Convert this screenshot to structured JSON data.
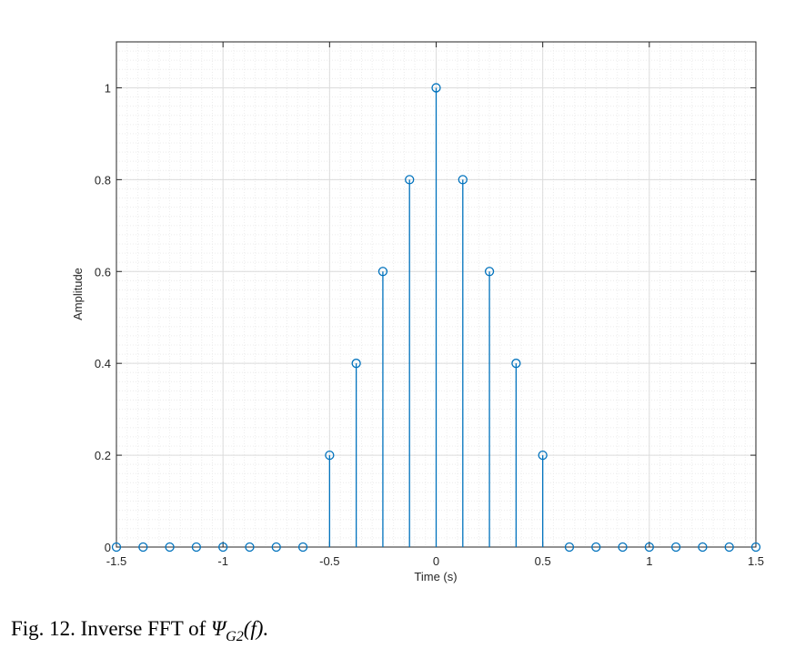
{
  "chart_data": {
    "type": "stem",
    "x_label": "Time (s)",
    "y_label": "Amplitude",
    "x": [
      -1.5,
      -1.375,
      -1.25,
      -1.125,
      -1,
      -0.875,
      -0.75,
      -0.625,
      -0.5,
      -0.375,
      -0.25,
      -0.125,
      0,
      0.125,
      0.25,
      0.375,
      0.5,
      0.625,
      0.75,
      0.875,
      1,
      1.125,
      1.25,
      1.375,
      1.5
    ],
    "values": [
      0,
      0,
      0,
      0,
      0,
      0,
      0,
      0,
      0.2,
      0.4,
      0.6,
      0.8,
      1,
      0.8,
      0.6,
      0.4,
      0.2,
      0,
      0,
      0,
      0,
      0,
      0,
      0,
      0
    ],
    "color": "#0072bd",
    "xlim": [
      -1.5,
      1.5
    ],
    "ylim": [
      0,
      1.1
    ],
    "xticks": [
      -1.5,
      -1,
      -0.5,
      0,
      0.5,
      1,
      1.5
    ],
    "yticks": [
      0,
      0.2,
      0.4,
      0.6,
      0.8,
      1
    ],
    "grid": true,
    "minor_grid": true
  },
  "caption": {
    "text": "Fig.  12. Inverse FFT of",
    "symbol": "Ψ",
    "subscript": "G2",
    "argument": "(f)."
  }
}
